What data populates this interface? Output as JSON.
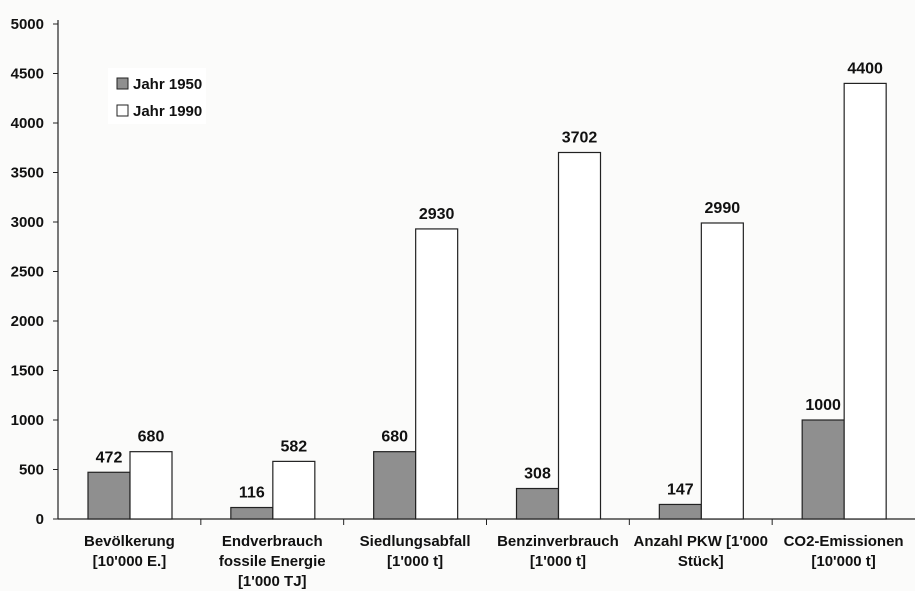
{
  "chart_data": {
    "type": "bar",
    "title": "",
    "xlabel": "",
    "ylabel": "",
    "ylim": [
      0,
      5000
    ],
    "yticks": [
      0,
      500,
      1000,
      1500,
      2000,
      2500,
      3000,
      3500,
      4000,
      4500,
      5000
    ],
    "grid": false,
    "legend_position": "top-left",
    "categories": [
      [
        "Bevölkerung",
        "[10'000 E.]"
      ],
      [
        "Endverbrauch",
        "fossile Energie",
        "[1'000 TJ]"
      ],
      [
        "Siedlungsabfall",
        "[1'000 t]"
      ],
      [
        "Benzinverbrauch",
        "[1'000 t]"
      ],
      [
        "Anzahl PKW [1'000",
        "Stück]"
      ],
      [
        "CO2-Emissionen",
        "[10'000 t]"
      ]
    ],
    "series": [
      {
        "name": "Jahr 1950",
        "color": "#8f8f8f",
        "values": [
          472,
          116,
          680,
          308,
          147,
          1000
        ]
      },
      {
        "name": "Jahr 1990",
        "color": "#ffffff",
        "values": [
          680,
          582,
          2930,
          3702,
          2990,
          4400
        ]
      }
    ]
  }
}
